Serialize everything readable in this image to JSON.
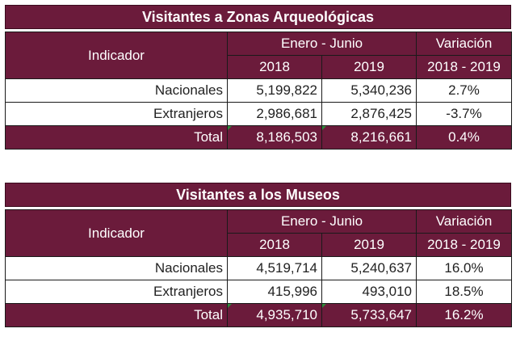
{
  "tables": [
    {
      "title": "Visitantes a Zonas Arqueológicas",
      "indicator_header": "Indicador",
      "period_header": "Enero - Junio",
      "variation_header": "Variación",
      "year_a": "2018",
      "year_b": "2019",
      "variation_range": "2018 - 2019",
      "rows": [
        {
          "label": "Nacionales",
          "v2018": "5,199,822",
          "v2019": "5,340,236",
          "var": "2.7%"
        },
        {
          "label": "Extranjeros",
          "v2018": "2,986,681",
          "v2019": "2,876,425",
          "var": "-3.7%"
        }
      ],
      "total": {
        "label": "Total",
        "v2018": "8,186,503",
        "v2019": "8,216,661",
        "var": "0.4%"
      }
    },
    {
      "title": "Visitantes a los Museos",
      "indicator_header": "Indicador",
      "period_header": "Enero - Junio",
      "variation_header": "Variación",
      "year_a": "2018",
      "year_b": "2019",
      "variation_range": "2018 - 2019",
      "rows": [
        {
          "label": "Nacionales",
          "v2018": "4,519,714",
          "v2019": "5,240,637",
          "var": "16.0%"
        },
        {
          "label": "Extranjeros",
          "v2018": "415,996",
          "v2019": "493,010",
          "var": "18.5%"
        }
      ],
      "total": {
        "label": "Total",
        "v2018": "4,935,710",
        "v2019": "5,733,647",
        "var": "16.2%"
      }
    }
  ],
  "colors": {
    "header_bg": "#6b1b3b",
    "header_text": "#ffffff",
    "cell_marker": "#2f8a3a"
  }
}
